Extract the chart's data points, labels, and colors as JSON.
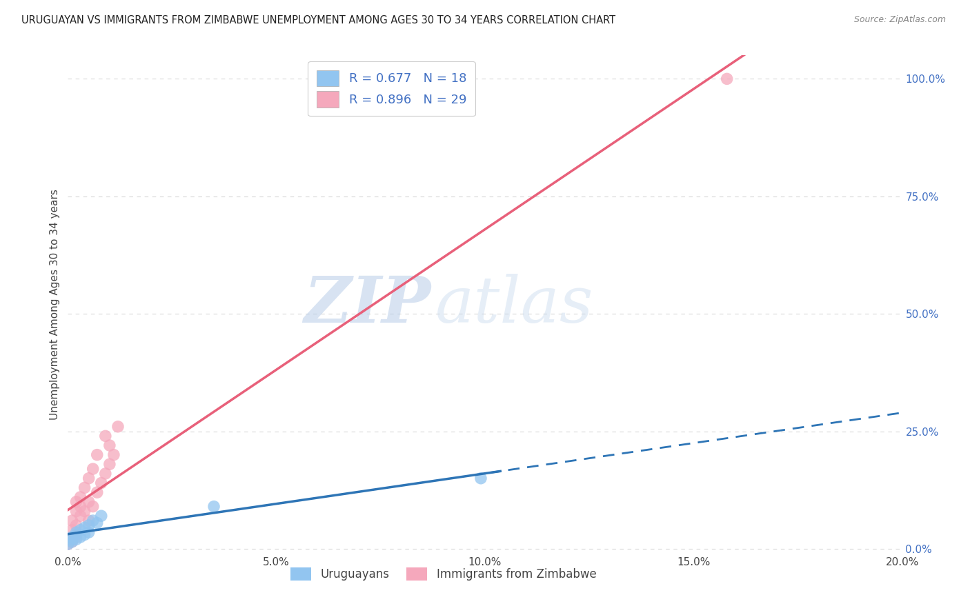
{
  "title": "URUGUAYAN VS IMMIGRANTS FROM ZIMBABWE UNEMPLOYMENT AMONG AGES 30 TO 34 YEARS CORRELATION CHART",
  "source": "Source: ZipAtlas.com",
  "ylabel": "Unemployment Among Ages 30 to 34 years",
  "xlim": [
    0,
    0.2
  ],
  "ylim": [
    -0.01,
    1.05
  ],
  "right_yticks": [
    0.0,
    0.25,
    0.5,
    0.75,
    1.0
  ],
  "right_yticklabels": [
    "0.0%",
    "25.0%",
    "50.0%",
    "75.0%",
    "100.0%"
  ],
  "xticks": [
    0.0,
    0.05,
    0.1,
    0.15,
    0.2
  ],
  "xticklabels": [
    "0.0%",
    "5.0%",
    "10.0%",
    "15.0%",
    "20.0%"
  ],
  "uruguayan_x": [
    0.0,
    0.001,
    0.001,
    0.001,
    0.002,
    0.002,
    0.002,
    0.003,
    0.003,
    0.004,
    0.004,
    0.005,
    0.005,
    0.006,
    0.007,
    0.008,
    0.099,
    0.035
  ],
  "uruguayan_y": [
    0.01,
    0.015,
    0.02,
    0.025,
    0.02,
    0.03,
    0.035,
    0.04,
    0.025,
    0.045,
    0.03,
    0.035,
    0.05,
    0.06,
    0.055,
    0.07,
    0.15,
    0.09
  ],
  "zimbabwe_x": [
    0.0,
    0.001,
    0.001,
    0.001,
    0.001,
    0.002,
    0.002,
    0.002,
    0.002,
    0.003,
    0.003,
    0.003,
    0.004,
    0.004,
    0.005,
    0.005,
    0.005,
    0.006,
    0.006,
    0.007,
    0.007,
    0.008,
    0.009,
    0.009,
    0.01,
    0.01,
    0.011,
    0.012,
    0.158
  ],
  "zimbabwe_y": [
    0.01,
    0.015,
    0.02,
    0.04,
    0.06,
    0.025,
    0.05,
    0.08,
    0.1,
    0.07,
    0.09,
    0.11,
    0.08,
    0.13,
    0.06,
    0.1,
    0.15,
    0.09,
    0.17,
    0.12,
    0.2,
    0.14,
    0.16,
    0.24,
    0.18,
    0.22,
    0.2,
    0.26,
    1.0
  ],
  "uruguayan_color": "#92C5F0",
  "zimbabwe_color": "#F5A8BC",
  "uruguayan_line_color": "#2E75B6",
  "zimbabwe_line_color": "#E8607A",
  "R_uruguayan": 0.677,
  "N_uruguayan": 18,
  "R_zimbabwe": 0.896,
  "N_zimbabwe": 29,
  "legend_uruguayan": "Uruguayans",
  "legend_zimbabwe": "Immigrants from Zimbabwe",
  "watermark_zip": "ZIP",
  "watermark_atlas": "atlas",
  "background_color": "#ffffff",
  "grid_color": "#d8d8d8"
}
